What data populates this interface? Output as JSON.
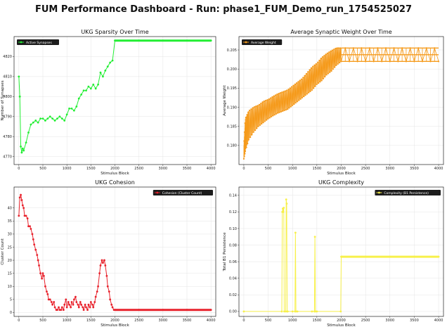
{
  "suptitle": "FUM Performance Dashboard - Run: phase1_FUM_Demo_run_1754525027",
  "chart_data": [
    {
      "type": "line",
      "title": "UKG Sparsity Over Time",
      "xlabel": "Stimulus Block",
      "ylabel": "Number of Synapses",
      "legend": "top-left",
      "xlim": [
        -100,
        4100
      ],
      "ylim": [
        4766,
        4830
      ],
      "xticks": [
        0,
        500,
        1000,
        1500,
        2000,
        2500,
        3000,
        3500,
        4000
      ],
      "yticks": [
        4770,
        4780,
        4790,
        4800,
        4810,
        4820
      ],
      "ytick_labels": [
        "4770",
        "4780",
        "4790",
        "4800",
        "4810",
        "4820"
      ],
      "series": [
        {
          "name": "Active Synapses",
          "color": "#22ee33",
          "marker": "o",
          "x": [
            0,
            20,
            40,
            60,
            80,
            100,
            150,
            200,
            250,
            300,
            350,
            400,
            450,
            500,
            550,
            600,
            650,
            700,
            750,
            800,
            850,
            900,
            950,
            1000,
            1050,
            1100,
            1150,
            1200,
            1250,
            1300,
            1350,
            1400,
            1450,
            1500,
            1550,
            1600,
            1650,
            1700,
            1750,
            1800,
            1850,
            1900,
            1950,
            2000,
            2500,
            3000,
            3500,
            4000
          ],
          "y": [
            4810,
            4800,
            4775,
            4772,
            4774,
            4773,
            4777,
            4782,
            4786,
            4787,
            4788,
            4787,
            4789,
            4789,
            4788,
            4789,
            4790,
            4789,
            4788,
            4789,
            4790,
            4789,
            4788,
            4791,
            4794,
            4794,
            4793,
            4795,
            4799,
            4801,
            4803,
            4803,
            4805,
            4804,
            4806,
            4804,
            4806,
            4812,
            4810,
            4813,
            4815,
            4817,
            4818,
            4828,
            4828,
            4828,
            4828,
            4828
          ]
        }
      ]
    },
    {
      "type": "line",
      "title": "Average Synaptic Weight Over Time",
      "xlabel": "Stimulus Block",
      "ylabel": "Average Weight",
      "legend": "top-left",
      "xlim": [
        -100,
        4100
      ],
      "ylim": [
        0.175,
        0.2085
      ],
      "xticks": [
        0,
        500,
        1000,
        1500,
        2000,
        2500,
        3000,
        3500,
        4000
      ],
      "yticks": [
        0.18,
        0.185,
        0.19,
        0.195,
        0.2,
        0.205
      ],
      "ytick_labels": [
        "0.180",
        "0.185",
        "0.190",
        "0.195",
        "0.200",
        "0.205"
      ],
      "series": [
        {
          "name": "Average Weight",
          "color": "#f59a1b",
          "marker": "o",
          "x": [
            0,
            30,
            100,
            200,
            300,
            400,
            500,
            600,
            700,
            800,
            900,
            1000,
            1100,
            1200,
            1300,
            1400,
            1500,
            1600,
            1700,
            1800,
            1900,
            2000,
            2500,
            3000,
            3500,
            4000
          ],
          "y_low": [
            0.1765,
            0.1785,
            0.1815,
            0.1835,
            0.185,
            0.186,
            0.187,
            0.1878,
            0.1885,
            0.189,
            0.1895,
            0.1905,
            0.1915,
            0.1925,
            0.1935,
            0.1945,
            0.196,
            0.197,
            0.1985,
            0.1995,
            0.201,
            0.202,
            0.202,
            0.202,
            0.202,
            0.202
          ],
          "y_high": [
            0.18,
            0.187,
            0.189,
            0.19,
            0.1905,
            0.1915,
            0.192,
            0.1928,
            0.1935,
            0.194,
            0.1945,
            0.1955,
            0.1965,
            0.1975,
            0.199,
            0.2005,
            0.2015,
            0.203,
            0.204,
            0.2048,
            0.2055,
            0.2055,
            0.2055,
            0.2055,
            0.2055,
            0.2055
          ]
        }
      ]
    },
    {
      "type": "line",
      "title": "UKG Cohesion",
      "xlabel": "Stimulus Block",
      "ylabel": "Cluster Count",
      "legend": "top-right",
      "xlim": [
        -100,
        4100
      ],
      "ylim": [
        -1.5,
        48
      ],
      "xticks": [
        0,
        500,
        1000,
        1500,
        2000,
        2500,
        3000,
        3500,
        4000
      ],
      "yticks": [
        0,
        5,
        10,
        15,
        20,
        25,
        30,
        35,
        40
      ],
      "ytick_labels": [
        "0",
        "5",
        "10",
        "15",
        "20",
        "25",
        "30",
        "35",
        "40"
      ],
      "series": [
        {
          "name": "Cohesion (Cluster Count)",
          "color": "#e8212b",
          "marker": "o",
          "x": [
            0,
            20,
            40,
            60,
            80,
            100,
            120,
            150,
            180,
            200,
            230,
            250,
            280,
            300,
            320,
            350,
            380,
            400,
            420,
            450,
            480,
            500,
            520,
            550,
            580,
            600,
            620,
            650,
            680,
            700,
            730,
            750,
            780,
            800,
            830,
            850,
            880,
            900,
            930,
            950,
            980,
            1000,
            1030,
            1050,
            1080,
            1100,
            1130,
            1150,
            1180,
            1200,
            1230,
            1250,
            1280,
            1300,
            1330,
            1350,
            1380,
            1400,
            1430,
            1450,
            1480,
            1500,
            1530,
            1550,
            1580,
            1600,
            1630,
            1650,
            1680,
            1700,
            1730,
            1750,
            1780,
            1800,
            1830,
            1850,
            1880,
            1900,
            1930,
            1950,
            1980,
            2000,
            2500,
            3000,
            3500,
            4000
          ],
          "y": [
            37,
            44,
            45,
            43,
            41,
            40,
            37,
            37,
            36,
            33,
            33,
            32,
            30,
            28,
            26,
            24,
            22,
            20,
            18,
            15,
            13,
            15,
            14,
            10,
            8,
            7,
            5,
            5,
            4,
            3,
            4,
            2,
            1,
            1,
            2,
            1,
            1,
            2,
            1,
            3,
            5,
            2,
            4,
            3,
            2,
            4,
            3,
            5,
            6,
            4,
            3,
            2,
            4,
            3,
            2,
            1,
            3,
            2,
            1,
            3,
            2,
            4,
            3,
            2,
            4,
            6,
            8,
            10,
            15,
            18,
            20,
            19,
            20,
            18,
            14,
            10,
            8,
            5,
            3,
            2,
            1,
            1,
            1,
            1,
            1,
            1
          ]
        }
      ]
    },
    {
      "type": "line",
      "title": "UKG Complexity",
      "xlabel": "Stimulus Block",
      "ylabel": "Total B1 Persistence",
      "legend": "top-right",
      "xlim": [
        -100,
        4100
      ],
      "ylim": [
        -0.006,
        0.15
      ],
      "xticks": [
        0,
        500,
        1000,
        1500,
        2000,
        2500,
        3000,
        3500,
        4000
      ],
      "yticks": [
        0,
        0.02,
        0.04,
        0.06,
        0.08,
        0.1,
        0.12,
        0.14
      ],
      "ytick_labels": [
        "0.00",
        "0.02",
        "0.04",
        "0.06",
        "0.08",
        "0.10",
        "0.12",
        "0.14"
      ],
      "series": [
        {
          "name": "Complexity (B1 Persistence)",
          "color": "#f7f04a",
          "marker": "o",
          "x": [
            0,
            780,
            790,
            800,
            810,
            820,
            830,
            860,
            870,
            880,
            890,
            900,
            1000,
            1050,
            1060,
            1070,
            1100,
            1400,
            1450,
            1460,
            1470,
            1500,
            1990,
            2000,
            2010,
            2500,
            3000,
            3500,
            4000
          ],
          "y": [
            0,
            0,
            0.12,
            0.124,
            0.12,
            0.125,
            0,
            0,
            0.135,
            0.13,
            0,
            0,
            0,
            0,
            0.095,
            0,
            0,
            0,
            0,
            0.09,
            0,
            0,
            0,
            0.066,
            0.066,
            0.066,
            0.066,
            0.066,
            0.066
          ]
        }
      ]
    }
  ]
}
